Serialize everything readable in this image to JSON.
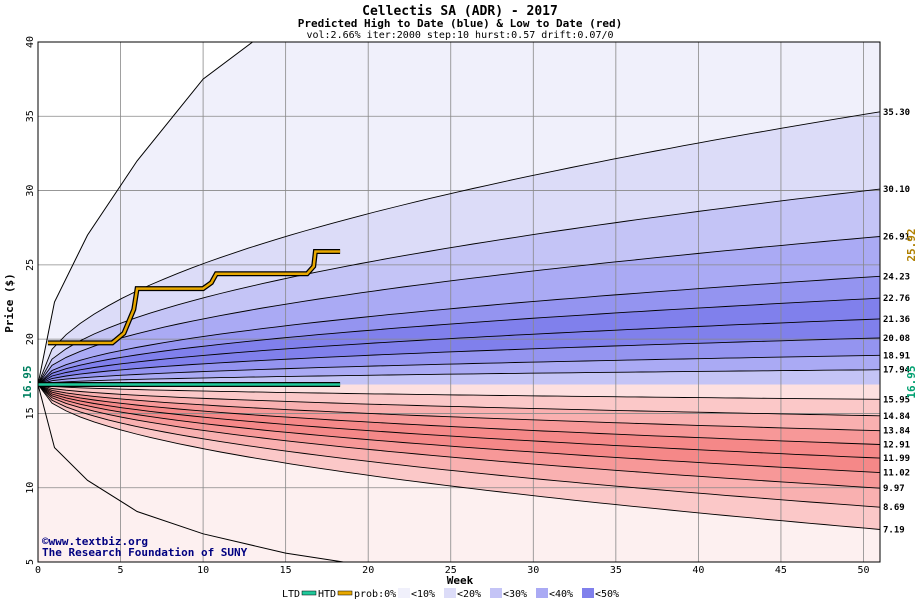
{
  "chart_data": {
    "type": "area",
    "title": "Cellectis SA (ADR) - 2017",
    "subtitle": "Predicted High to Date (blue) &  Low to Date (red)",
    "params": "vol:2.66% iter:2000 step:10 hurst:0.57 drift:0.07/0",
    "xlabel": "Week",
    "ylabel": "Price ($)",
    "xlim": [
      0,
      51
    ],
    "ylim": [
      5,
      40
    ],
    "x_ticks": [
      "0",
      "5",
      "10",
      "15",
      "20",
      "25",
      "30",
      "35",
      "40",
      "45",
      "50"
    ],
    "y_ticks": [
      "5",
      "10",
      "15",
      "20",
      "25",
      "30",
      "35",
      "40"
    ],
    "grid": true,
    "start_price": "16.95",
    "start_price_right": "16.95",
    "htd_current": "25.92",
    "high_levels": [
      "35.30",
      "30.10",
      "26.91",
      "24.23",
      "22.76",
      "21.36",
      "20.08",
      "18.91",
      "17.94"
    ],
    "high_values": [
      35.3,
      30.1,
      26.91,
      24.23,
      22.76,
      21.36,
      20.08,
      18.91,
      17.94
    ],
    "low_levels": [
      "15.95",
      "14.84",
      "13.84",
      "12.91",
      "11.99",
      "11.02",
      "9.97",
      "8.69",
      "7.19"
    ],
    "low_values": [
      15.95,
      14.84,
      13.84,
      12.91,
      11.99,
      11.02,
      9.97,
      8.69,
      7.19
    ],
    "high_outer_curve": {
      "x": [
        0,
        1,
        3,
        6,
        10,
        13,
        15
      ],
      "y": [
        16.95,
        22.5,
        27.0,
        32.0,
        37.5,
        40.5,
        42.0
      ]
    },
    "low_outer_curve": {
      "x": [
        0,
        1,
        3,
        6,
        10,
        15,
        18.5
      ],
      "y": [
        16.95,
        12.7,
        10.5,
        8.4,
        6.9,
        5.6,
        5.0
      ]
    },
    "htd_series": {
      "name": "HTD",
      "x": [
        0.6,
        4.5,
        5.2,
        5.8,
        6.0,
        10.0,
        10.5,
        10.6,
        10.8,
        16.3,
        16.7,
        16.8,
        18.3
      ],
      "y": [
        19.75,
        19.75,
        20.4,
        22.0,
        23.4,
        23.4,
        23.8,
        24.0,
        24.4,
        24.4,
        24.9,
        25.9,
        25.9
      ]
    },
    "ltd_series": {
      "name": "LTD",
      "x": [
        0,
        18.3
      ],
      "y": [
        16.95,
        16.95
      ]
    },
    "colors": {
      "htd": "#e8a800",
      "ltd": "#20c89a",
      "grid": "#888888",
      "blue_bands": [
        "#f0f0fb",
        "#dcdcf8",
        "#c4c4f6",
        "#aaaaf4",
        "#9494f0",
        "#8080ec"
      ],
      "red_bands": [
        "#fdf0f0",
        "#fde0e0",
        "#fbc8c8",
        "#f9b0b0",
        "#f79898",
        "#f58888"
      ],
      "right_htd_label": "#b08000",
      "right_ltd_label": "#00a070"
    },
    "legend": {
      "ltd": "LTD",
      "htd": "HTD",
      "prob": "prob:0%",
      "items": [
        "<10%",
        "<20%",
        "<30%",
        "<40%",
        "<50%"
      ],
      "swatches": [
        "#f0f0fb",
        "#dcdcf8",
        "#c4c4f6",
        "#aaaaf4",
        "#8080ec"
      ]
    },
    "credit_line1": "©www.textbiz.org",
    "credit_line2": "The Research Foundation of SUNY"
  }
}
